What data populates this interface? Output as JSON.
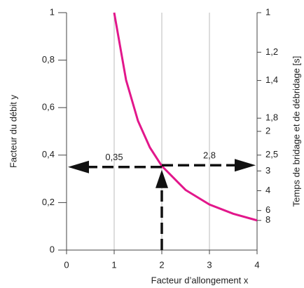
{
  "chart_data": {
    "type": "line",
    "xlabel": "Facteur d’allongement x",
    "ylabel": "Facteur du débit y",
    "y2label": "Temps de bridage et de débridage [s]",
    "x": [
      1,
      1.25,
      1.5,
      1.75,
      2,
      2.5,
      3,
      3.5,
      4
    ],
    "series": [
      {
        "color": "#e2178b",
        "values": [
          1,
          0.716,
          0.544,
          0.432,
          0.354,
          0.253,
          0.192,
          0.153,
          0.125
        ]
      }
    ],
    "xlim": [
      0,
      4
    ],
    "xticks": [
      0,
      1,
      2,
      3,
      4
    ],
    "ylim": [
      0,
      1
    ],
    "yticks": [
      0,
      {
        "value": 0.2,
        "label": "0,2"
      },
      {
        "value": 0.4,
        "label": "0,4"
      },
      {
        "value": 0.6,
        "label": "0,6"
      },
      {
        "value": 0.8,
        "label": "0,8"
      },
      1
    ],
    "y2scale": "reciprocal",
    "y2ticks": [
      1,
      {
        "value": 1.2,
        "label": "1,2"
      },
      {
        "value": 1.4,
        "label": "1,4"
      },
      {
        "value": 1.8,
        "label": "1,8"
      },
      2,
      {
        "value": 2.5,
        "label": "2,5"
      },
      3,
      4,
      6,
      8
    ],
    "grid": "x",
    "reading": {
      "x": 2,
      "y": 0.35,
      "y_label": "0,35",
      "y2": 2.8,
      "y2_label": "2,8"
    }
  }
}
